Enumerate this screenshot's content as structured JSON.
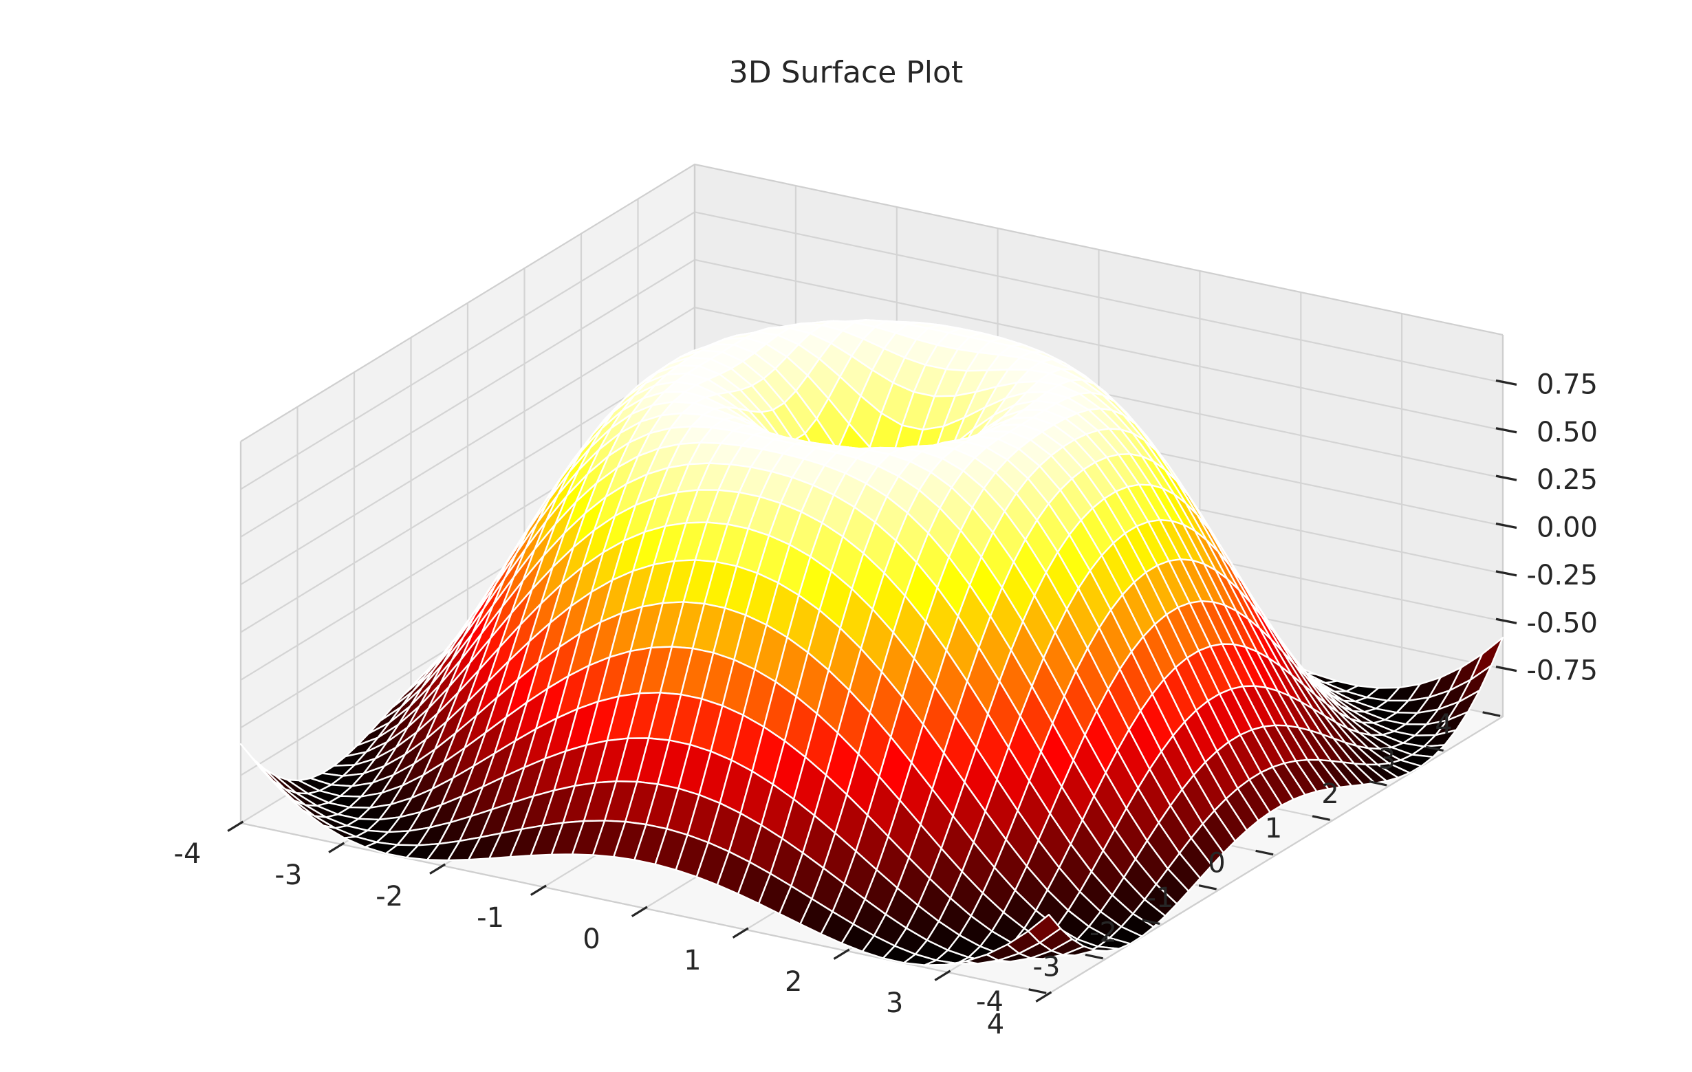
{
  "chart_data": {
    "type": "surface",
    "title": "3D Surface Plot",
    "function": "z = sin(sqrt(x^2 + y^2))",
    "colormap": "hot",
    "grid": true,
    "x": {
      "range": [
        -4,
        4
      ],
      "ticks": [
        -4,
        -3,
        -2,
        -1,
        0,
        1,
        2,
        3,
        4
      ],
      "tick_labels": [
        "-4",
        "-3",
        "-2",
        "-1",
        "0",
        "1",
        "2",
        "3",
        "4"
      ]
    },
    "y": {
      "range": [
        -4,
        4
      ],
      "ticks": [
        -4,
        -3,
        -2,
        -1,
        0,
        1,
        2,
        3,
        4
      ],
      "tick_labels": [
        "-4",
        "-3",
        "-2",
        "-1",
        "0",
        "1",
        "2",
        "3",
        "4"
      ]
    },
    "z": {
      "range": [
        -1,
        1
      ],
      "ticks": [
        -0.75,
        -0.5,
        -0.25,
        0,
        0.25,
        0.5,
        0.75
      ],
      "tick_labels": [
        "-0.75",
        "-0.50",
        "-0.25",
        "0.00",
        "0.25",
        "0.50",
        "0.75"
      ]
    },
    "grid_points": 40,
    "colors": {
      "pane": "#f2f2f2",
      "gridline": "#d4d4d4",
      "edge": "#ffffff",
      "text": "#262626",
      "tick": "#262626"
    }
  }
}
